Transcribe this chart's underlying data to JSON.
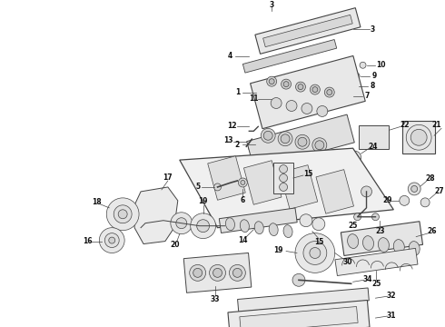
{
  "bg_color": "#ffffff",
  "lc": "#444444",
  "tc": "#111111",
  "fn": 5.5,
  "fig_w": 4.9,
  "fig_h": 3.6,
  "dpi": 100
}
